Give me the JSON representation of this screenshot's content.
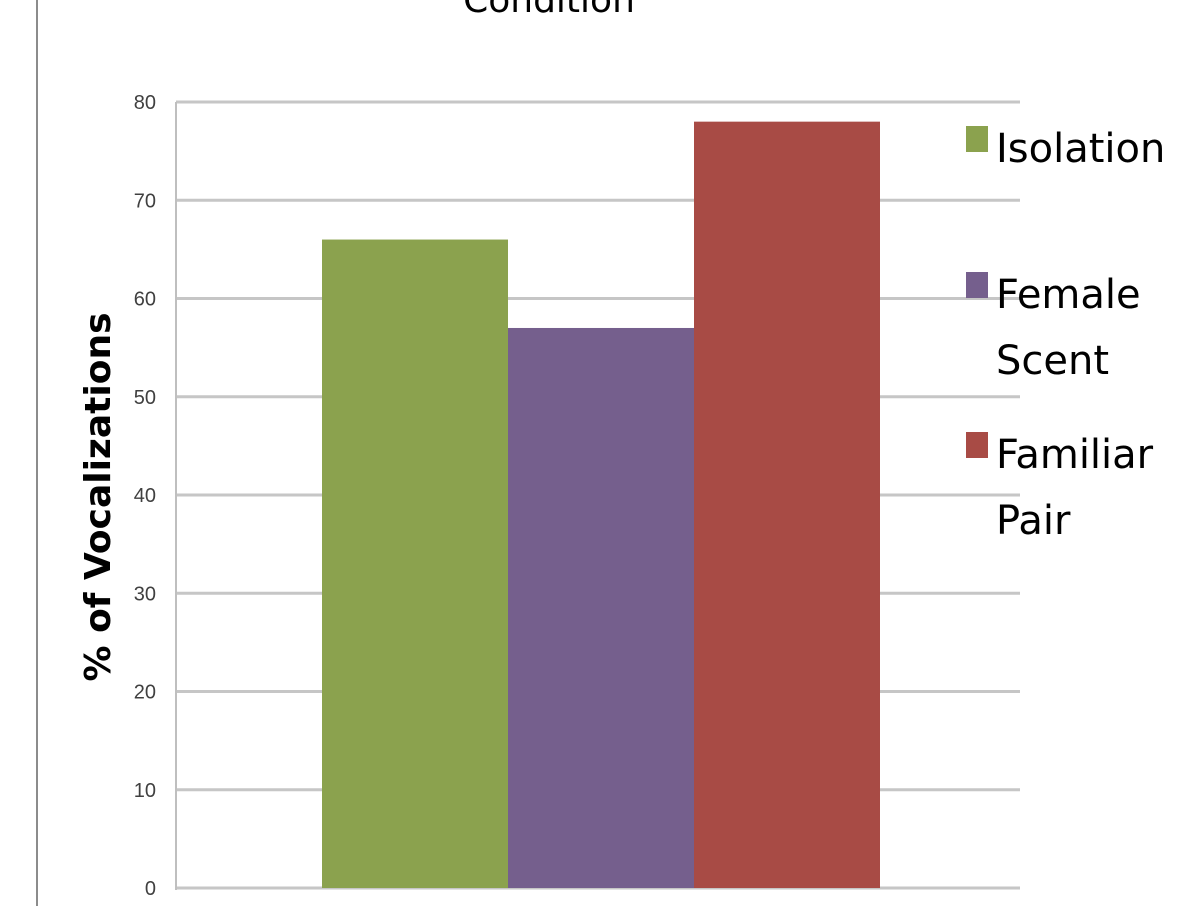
{
  "chart_data": {
    "type": "bar",
    "title": "Condition",
    "xlabel": "",
    "ylabel": "% of Vocalizations",
    "ylim": [
      0,
      80
    ],
    "yticks": [
      0,
      10,
      20,
      30,
      40,
      50,
      60,
      70,
      80
    ],
    "grid": true,
    "legend_position": "right",
    "categories": [
      ""
    ],
    "series": [
      {
        "name": "Isolation",
        "legend_lines": [
          "Isolation"
        ],
        "values": [
          66
        ],
        "color": "#8BA24E"
      },
      {
        "name": "Female Scent",
        "legend_lines": [
          "Female",
          "Scent"
        ],
        "values": [
          57
        ],
        "color": "#755F8D"
      },
      {
        "name": "Familiar Pair",
        "legend_lines": [
          "Familiar",
          "Pair"
        ],
        "values": [
          78
        ],
        "color": "#A84B45"
      }
    ]
  }
}
